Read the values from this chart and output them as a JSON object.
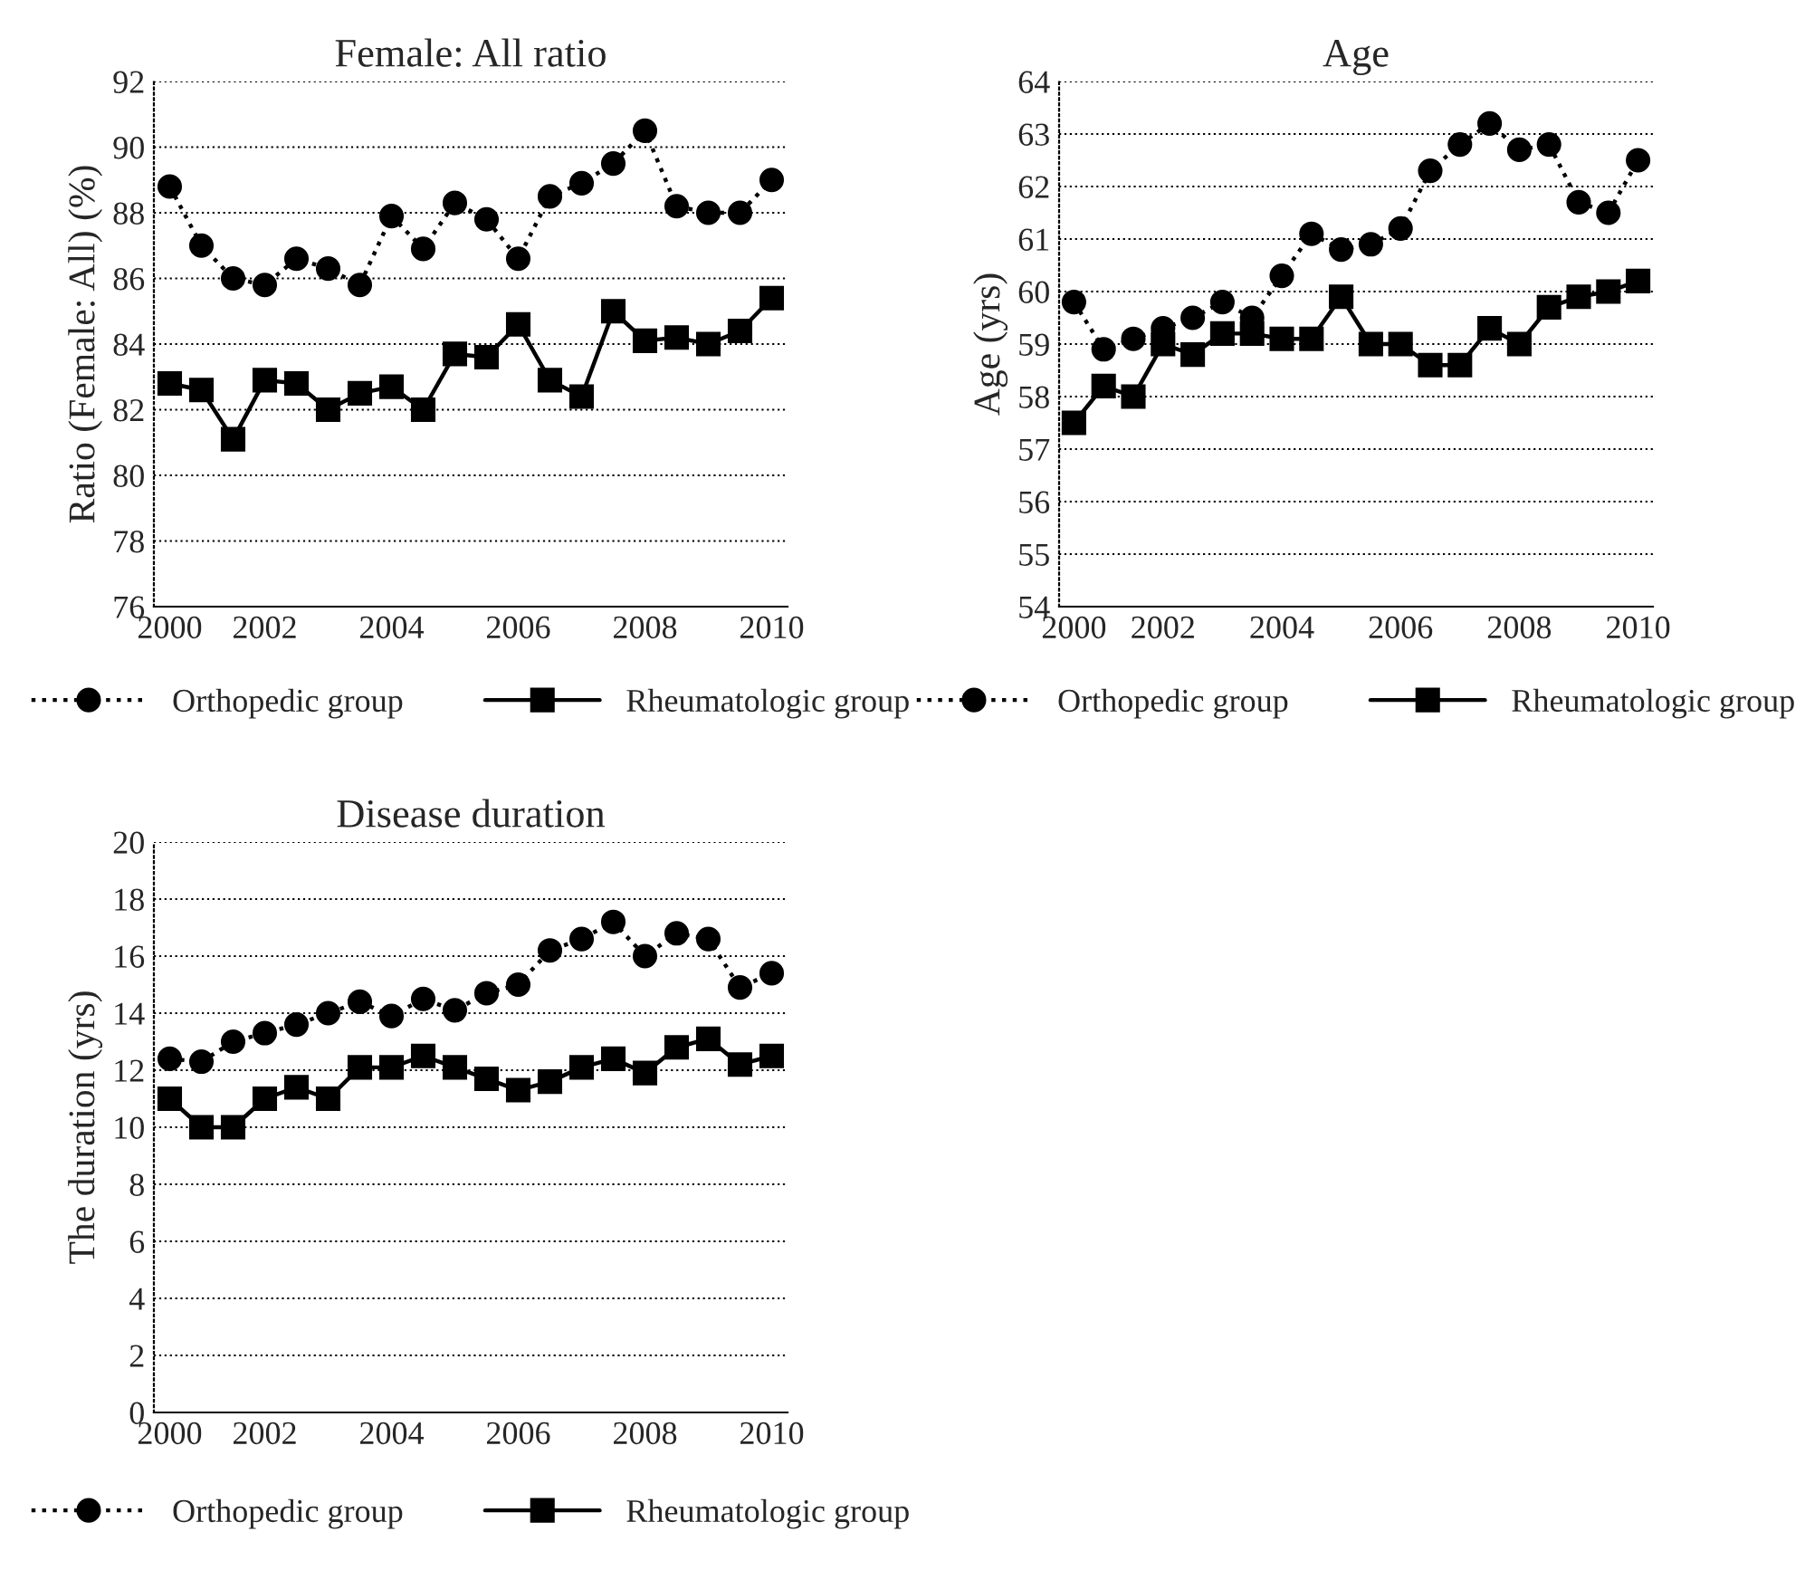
{
  "chart_data": [
    {
      "type": "line",
      "title": "Female: All ratio",
      "ylabel": "Ratio (Female: All) (%)",
      "categories": [
        "2000",
        null,
        null,
        "2002",
        null,
        null,
        null,
        "2004",
        null,
        null,
        null,
        "2006",
        null,
        null,
        null,
        "2008",
        null,
        null,
        null,
        "2010"
      ],
      "ylim": [
        76,
        92
      ],
      "yticks": [
        76,
        78,
        80,
        82,
        84,
        86,
        88,
        90,
        92
      ],
      "grid": "y",
      "legend": "bottom",
      "series": [
        {
          "name": "Orthopedic group",
          "color": "#000000",
          "marker": "circle",
          "line_style": "dotted",
          "values": [
            88.8,
            87.0,
            86.0,
            85.8,
            86.6,
            86.3,
            85.8,
            87.9,
            86.9,
            88.3,
            87.8,
            86.6,
            88.5,
            88.9,
            89.5,
            90.5,
            88.2,
            88.0,
            88.0,
            89.0
          ]
        },
        {
          "name": "Rheumatologic group",
          "color": "#000000",
          "marker": "square",
          "line_style": "solid",
          "values": [
            82.8,
            82.6,
            81.1,
            82.9,
            82.8,
            82.0,
            82.5,
            82.7,
            82.0,
            83.7,
            83.6,
            84.6,
            82.9,
            82.4,
            85.0,
            84.1,
            84.2,
            84.0,
            84.4,
            85.4
          ]
        }
      ]
    },
    {
      "type": "line",
      "title": "Age",
      "ylabel": "Age (yrs)",
      "categories": [
        "2000",
        null,
        null,
        "2002",
        null,
        null,
        null,
        "2004",
        null,
        null,
        null,
        "2006",
        null,
        null,
        null,
        "2008",
        null,
        null,
        null,
        "2010"
      ],
      "ylim": [
        54,
        64
      ],
      "yticks": [
        54,
        55,
        56,
        57,
        58,
        59,
        60,
        61,
        62,
        63,
        64
      ],
      "grid": "y",
      "legend": "bottom",
      "series": [
        {
          "name": "Orthopedic group",
          "color": "#000000",
          "marker": "circle",
          "line_style": "dotted",
          "values": [
            59.8,
            58.9,
            59.1,
            59.3,
            59.5,
            59.8,
            59.5,
            60.3,
            61.1,
            60.8,
            60.9,
            61.2,
            62.3,
            62.8,
            63.2,
            62.7,
            62.8,
            61.7,
            61.5,
            62.5
          ]
        },
        {
          "name": "Rheumatologic group",
          "color": "#000000",
          "marker": "square",
          "line_style": "solid",
          "values": [
            57.5,
            58.2,
            58.0,
            59.0,
            58.8,
            59.2,
            59.2,
            59.1,
            59.1,
            59.9,
            59.0,
            59.0,
            58.6,
            58.6,
            59.3,
            59.0,
            59.7,
            59.9,
            60.0,
            60.2
          ]
        }
      ]
    },
    {
      "type": "line",
      "title": "Disease duration",
      "ylabel": "The duration (yrs)",
      "categories": [
        "2000",
        null,
        null,
        "2002",
        null,
        null,
        null,
        "2004",
        null,
        null,
        null,
        "2006",
        null,
        null,
        null,
        "2008",
        null,
        null,
        null,
        "2010"
      ],
      "ylim": [
        0,
        20
      ],
      "yticks": [
        0,
        2,
        4,
        6,
        8,
        10,
        12,
        14,
        16,
        18,
        20
      ],
      "grid": "y",
      "legend": "bottom",
      "series": [
        {
          "name": "Orthopedic group",
          "color": "#000000",
          "marker": "circle",
          "line_style": "dotted",
          "values": [
            12.4,
            12.3,
            13.0,
            13.3,
            13.6,
            14.0,
            14.4,
            13.9,
            14.5,
            14.1,
            14.7,
            15.0,
            16.2,
            16.6,
            17.2,
            16.0,
            16.8,
            16.6,
            14.9,
            15.4
          ]
        },
        {
          "name": "Rheumatologic group",
          "color": "#000000",
          "marker": "square",
          "line_style": "solid",
          "values": [
            11.0,
            10.0,
            10.0,
            11.0,
            11.4,
            11.0,
            12.1,
            12.1,
            12.5,
            12.1,
            11.7,
            11.3,
            11.6,
            12.1,
            12.4,
            11.9,
            12.8,
            13.1,
            12.2,
            12.5
          ]
        }
      ]
    }
  ]
}
